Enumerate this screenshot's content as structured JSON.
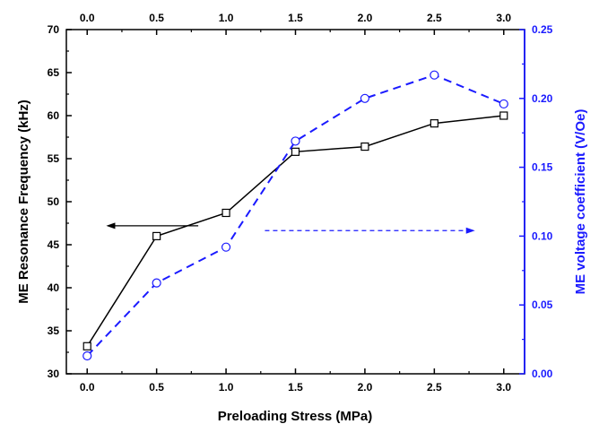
{
  "chart_data": {
    "type": "line",
    "xlabel": "Preloading Stress (MPa)",
    "ylabel_left": "ME Resonance Frequency (kHz)",
    "ylabel_right": "ME voltage coefficient (V/Oe)",
    "x": [
      0.0,
      0.5,
      1.0,
      1.5,
      2.0,
      2.5,
      3.0
    ],
    "x_tick_labels": [
      "0.0",
      "0.5",
      "1.0",
      "1.5",
      "2.0",
      "2.5",
      "3.0"
    ],
    "xlim": [
      -0.15,
      3.15
    ],
    "ylim_left": [
      30,
      70
    ],
    "y_left_tick_labels": [
      "30",
      "35",
      "40",
      "45",
      "50",
      "55",
      "60",
      "65",
      "70"
    ],
    "ylim_right": [
      0.0,
      0.25
    ],
    "y_right_tick_labels": [
      "0.00",
      "0.05",
      "0.10",
      "0.15",
      "0.20",
      "0.25"
    ],
    "series": [
      {
        "axis": "left",
        "color": "#000000",
        "line_style": "solid",
        "marker": "square",
        "values": [
          33.2,
          46.0,
          48.7,
          55.8,
          56.4,
          59.1,
          60.0
        ]
      },
      {
        "axis": "right",
        "color": "#1a1aff",
        "line_style": "dashed",
        "marker": "circle",
        "values": [
          0.013,
          0.066,
          0.092,
          0.169,
          0.2,
          0.217,
          0.196
        ]
      }
    ],
    "annotations": [
      {
        "type": "arrow",
        "direction": "left",
        "color": "#000000",
        "line_style": "solid",
        "refers_to": "left-axis"
      },
      {
        "type": "arrow",
        "direction": "right",
        "color": "#1a1aff",
        "line_style": "dashed",
        "refers_to": "right-axis"
      }
    ],
    "grid": false,
    "legend": "none"
  }
}
